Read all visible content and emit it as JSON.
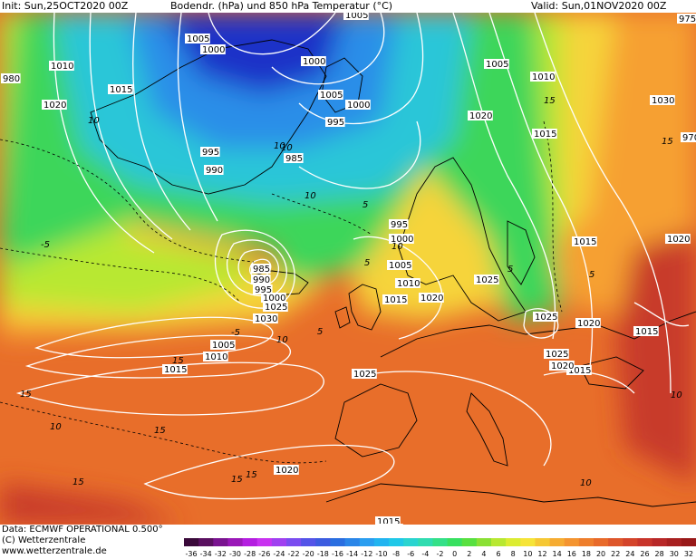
{
  "header": {
    "init": "Init: Sun,25OCT2020 00Z",
    "title": "Bodendr. (hPa) und 850 hPa Temperatur (°C)",
    "valid": "Valid: Sun,01NOV2020 00Z"
  },
  "footer": {
    "data_line": "Data: ECMWF OPERATIONAL 0.500°",
    "copyright": "(C) Wetterzentrale",
    "website": "www.wetterzentrale.de"
  },
  "scale": {
    "ticks": [
      "-36",
      "-34",
      "-32",
      "-30",
      "-28",
      "-26",
      "-24",
      "-22",
      "-20",
      "-18",
      "-16",
      "-14",
      "-12",
      "-10",
      "-8",
      "-6",
      "-4",
      "-2",
      "0",
      "2",
      "4",
      "6",
      "8",
      "10",
      "12",
      "14",
      "16",
      "18",
      "20",
      "22",
      "24",
      "26",
      "28",
      "30",
      "32"
    ]
  },
  "isobar_labels": [
    "1005",
    "1005",
    "1000",
    "1000",
    "1010",
    "1015",
    "1020",
    "995",
    "990",
    "985",
    "1005",
    "1000",
    "995",
    "1005",
    "1010",
    "1020",
    "1015",
    "1030",
    "1015",
    "1020",
    "995",
    "1000",
    "1005",
    "1010",
    "1015",
    "1020",
    "1025",
    "1025",
    "1015",
    "1005",
    "1010",
    "1015",
    "1025",
    "1025",
    "1015",
    "1020",
    "1015",
    "975",
    "970",
    "980",
    "985",
    "990",
    "995",
    "1000",
    "1025",
    "1030",
    "1020",
    "1020",
    "1020"
  ],
  "isotherm_labels": [
    "15",
    "10",
    "10",
    "-5",
    "10",
    "10",
    "5",
    "5",
    "10",
    "-5",
    "5",
    "5",
    "10",
    "15",
    "15",
    "10",
    "5",
    "15",
    "10",
    "15",
    "15",
    "15",
    "15",
    "10"
  ],
  "colors": {
    "cold_deep": "#1c30c8",
    "cold": "#2b8ee8",
    "cool": "#2ac6d8",
    "mild": "#3ed65a",
    "warm_low": "#b8e832",
    "warm": "#f6d43a",
    "hot_low": "#f6a032",
    "hot": "#e86e2a",
    "very_hot": "#c83a2a",
    "isobar": "#ffffff",
    "coast": "#000000"
  }
}
